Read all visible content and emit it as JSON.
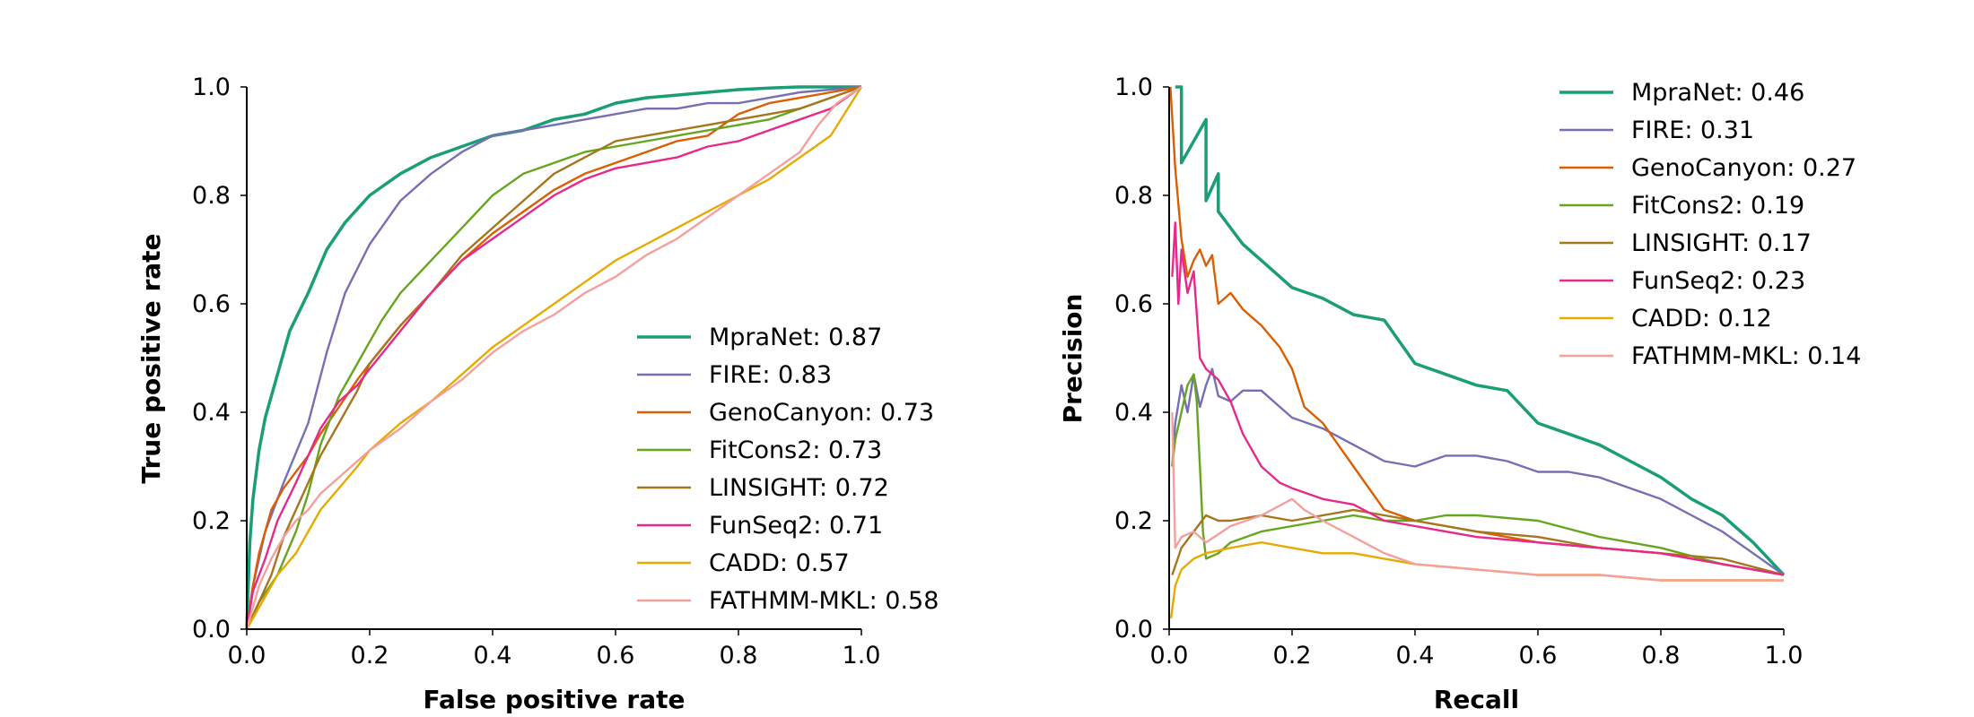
{
  "chart_data": [
    {
      "type": "line",
      "title": "",
      "xlabel": "False positive rate",
      "ylabel": "True positive rate",
      "xlim": [
        0,
        1
      ],
      "ylim": [
        0,
        1
      ],
      "xticks": [
        "0.0",
        "0.2",
        "0.4",
        "0.6",
        "0.8",
        "1.0"
      ],
      "yticks": [
        "0.0",
        "0.2",
        "0.4",
        "0.6",
        "0.8",
        "1.0"
      ],
      "grid": false,
      "legend_position": "lower-right",
      "series": [
        {
          "name": "MpraNet: 0.87",
          "color": "#1b9e77",
          "x": [
            0,
            0.005,
            0.01,
            0.02,
            0.03,
            0.05,
            0.07,
            0.1,
            0.13,
            0.16,
            0.2,
            0.25,
            0.3,
            0.35,
            0.4,
            0.45,
            0.5,
            0.55,
            0.6,
            0.65,
            0.7,
            0.75,
            0.8,
            0.85,
            0.9,
            0.95,
            1.0
          ],
          "y": [
            0,
            0.16,
            0.24,
            0.33,
            0.39,
            0.47,
            0.55,
            0.62,
            0.7,
            0.75,
            0.8,
            0.84,
            0.87,
            0.89,
            0.91,
            0.92,
            0.94,
            0.95,
            0.97,
            0.98,
            0.985,
            0.99,
            0.995,
            0.998,
            1.0,
            1.0,
            1.0
          ]
        },
        {
          "name": "FIRE: 0.83",
          "color": "#7570b3",
          "x": [
            0,
            0.01,
            0.03,
            0.06,
            0.1,
            0.13,
            0.16,
            0.2,
            0.25,
            0.3,
            0.35,
            0.4,
            0.45,
            0.5,
            0.55,
            0.6,
            0.65,
            0.7,
            0.75,
            0.8,
            0.85,
            0.9,
            0.95,
            1.0
          ],
          "y": [
            0,
            0.08,
            0.18,
            0.27,
            0.38,
            0.51,
            0.62,
            0.71,
            0.79,
            0.84,
            0.88,
            0.91,
            0.92,
            0.93,
            0.94,
            0.95,
            0.96,
            0.96,
            0.97,
            0.97,
            0.98,
            0.99,
            0.995,
            1.0
          ]
        },
        {
          "name": "GenoCanyon: 0.73",
          "color": "#d95f02",
          "x": [
            0,
            0.01,
            0.02,
            0.04,
            0.06,
            0.08,
            0.1,
            0.12,
            0.15,
            0.18,
            0.2,
            0.25,
            0.3,
            0.35,
            0.4,
            0.45,
            0.5,
            0.55,
            0.6,
            0.65,
            0.7,
            0.75,
            0.8,
            0.85,
            0.9,
            0.95,
            1.0
          ],
          "y": [
            0,
            0.08,
            0.14,
            0.22,
            0.26,
            0.29,
            0.32,
            0.36,
            0.41,
            0.46,
            0.49,
            0.56,
            0.62,
            0.68,
            0.73,
            0.77,
            0.81,
            0.84,
            0.86,
            0.88,
            0.9,
            0.91,
            0.95,
            0.97,
            0.98,
            0.99,
            1.0
          ]
        },
        {
          "name": "FitCons2: 0.73",
          "color": "#66a61e",
          "x": [
            0,
            0.02,
            0.05,
            0.08,
            0.1,
            0.12,
            0.15,
            0.18,
            0.2,
            0.22,
            0.25,
            0.3,
            0.35,
            0.4,
            0.45,
            0.5,
            0.55,
            0.6,
            0.65,
            0.7,
            0.75,
            0.8,
            0.85,
            0.9,
            0.95,
            1.0
          ],
          "y": [
            0,
            0.05,
            0.1,
            0.18,
            0.25,
            0.34,
            0.43,
            0.49,
            0.53,
            0.57,
            0.62,
            0.68,
            0.74,
            0.8,
            0.84,
            0.86,
            0.88,
            0.89,
            0.9,
            0.91,
            0.92,
            0.93,
            0.94,
            0.96,
            0.98,
            1.0
          ]
        },
        {
          "name": "LINSIGHT: 0.72",
          "color": "#a6761d",
          "x": [
            0,
            0.02,
            0.04,
            0.06,
            0.08,
            0.1,
            0.12,
            0.15,
            0.18,
            0.2,
            0.25,
            0.3,
            0.35,
            0.4,
            0.45,
            0.5,
            0.55,
            0.6,
            0.65,
            0.7,
            0.75,
            0.8,
            0.85,
            0.9,
            0.95,
            1.0
          ],
          "y": [
            0,
            0.05,
            0.1,
            0.17,
            0.22,
            0.27,
            0.32,
            0.38,
            0.44,
            0.49,
            0.56,
            0.62,
            0.69,
            0.74,
            0.79,
            0.84,
            0.87,
            0.9,
            0.91,
            0.92,
            0.93,
            0.94,
            0.95,
            0.96,
            0.98,
            1.0
          ]
        },
        {
          "name": "FunSeq2: 0.71",
          "color": "#e7298a",
          "x": [
            0,
            0.01,
            0.03,
            0.05,
            0.08,
            0.1,
            0.12,
            0.15,
            0.18,
            0.2,
            0.25,
            0.3,
            0.35,
            0.4,
            0.45,
            0.5,
            0.55,
            0.6,
            0.65,
            0.7,
            0.75,
            0.8,
            0.85,
            0.9,
            0.95,
            1.0
          ],
          "y": [
            0,
            0.07,
            0.13,
            0.2,
            0.27,
            0.32,
            0.37,
            0.42,
            0.45,
            0.48,
            0.55,
            0.62,
            0.68,
            0.72,
            0.76,
            0.8,
            0.83,
            0.85,
            0.86,
            0.87,
            0.89,
            0.9,
            0.92,
            0.94,
            0.96,
            1.0
          ]
        },
        {
          "name": "CADD: 0.57",
          "color": "#e6ab02",
          "x": [
            0,
            0.01,
            0.03,
            0.05,
            0.08,
            0.1,
            0.12,
            0.15,
            0.18,
            0.2,
            0.25,
            0.3,
            0.35,
            0.4,
            0.45,
            0.5,
            0.55,
            0.6,
            0.65,
            0.7,
            0.75,
            0.8,
            0.85,
            0.9,
            0.95,
            1.0
          ],
          "y": [
            0,
            0.02,
            0.06,
            0.1,
            0.14,
            0.18,
            0.22,
            0.26,
            0.3,
            0.33,
            0.38,
            0.42,
            0.47,
            0.52,
            0.56,
            0.6,
            0.64,
            0.68,
            0.71,
            0.74,
            0.77,
            0.8,
            0.83,
            0.87,
            0.91,
            1.0
          ]
        },
        {
          "name": "FATHMM-MKL: 0.58",
          "color": "#f4a09c",
          "x": [
            0,
            0.02,
            0.04,
            0.06,
            0.08,
            0.1,
            0.12,
            0.15,
            0.18,
            0.2,
            0.25,
            0.3,
            0.35,
            0.4,
            0.45,
            0.5,
            0.55,
            0.6,
            0.65,
            0.7,
            0.75,
            0.8,
            0.85,
            0.9,
            0.93,
            0.96,
            1.0
          ],
          "y": [
            0,
            0.08,
            0.13,
            0.17,
            0.2,
            0.22,
            0.25,
            0.28,
            0.31,
            0.33,
            0.37,
            0.42,
            0.46,
            0.51,
            0.55,
            0.58,
            0.62,
            0.65,
            0.69,
            0.72,
            0.76,
            0.8,
            0.84,
            0.88,
            0.93,
            0.97,
            1.0
          ]
        }
      ]
    },
    {
      "type": "line",
      "title": "",
      "xlabel": "Recall",
      "ylabel": "Precision",
      "xlim": [
        0,
        1
      ],
      "ylim": [
        0,
        1
      ],
      "xticks": [
        "0.0",
        "0.2",
        "0.4",
        "0.6",
        "0.8",
        "1.0"
      ],
      "yticks": [
        "0.0",
        "0.2",
        "0.4",
        "0.6",
        "0.8",
        "1.0"
      ],
      "grid": false,
      "legend_position": "upper-right",
      "series": [
        {
          "name": "MpraNet: 0.46",
          "color": "#1b9e77",
          "x": [
            0.01,
            0.02,
            0.02,
            0.04,
            0.06,
            0.06,
            0.08,
            0.08,
            0.1,
            0.12,
            0.15,
            0.2,
            0.25,
            0.3,
            0.35,
            0.4,
            0.45,
            0.5,
            0.55,
            0.6,
            0.65,
            0.7,
            0.75,
            0.8,
            0.85,
            0.9,
            0.95,
            1.0
          ],
          "y": [
            1.0,
            1.0,
            0.86,
            0.9,
            0.94,
            0.79,
            0.84,
            0.77,
            0.74,
            0.71,
            0.68,
            0.63,
            0.61,
            0.58,
            0.57,
            0.49,
            0.47,
            0.45,
            0.44,
            0.38,
            0.36,
            0.34,
            0.31,
            0.28,
            0.24,
            0.21,
            0.16,
            0.1
          ]
        },
        {
          "name": "FIRE: 0.31",
          "color": "#7570b3",
          "x": [
            0.005,
            0.01,
            0.02,
            0.03,
            0.04,
            0.05,
            0.06,
            0.07,
            0.08,
            0.1,
            0.12,
            0.15,
            0.18,
            0.2,
            0.25,
            0.3,
            0.35,
            0.4,
            0.45,
            0.5,
            0.55,
            0.6,
            0.65,
            0.7,
            0.75,
            0.8,
            0.85,
            0.9,
            0.95,
            1.0
          ],
          "y": [
            0.3,
            0.38,
            0.45,
            0.4,
            0.47,
            0.41,
            0.45,
            0.48,
            0.43,
            0.42,
            0.44,
            0.44,
            0.41,
            0.39,
            0.37,
            0.34,
            0.31,
            0.3,
            0.32,
            0.32,
            0.31,
            0.29,
            0.29,
            0.28,
            0.26,
            0.24,
            0.21,
            0.18,
            0.14,
            0.1
          ]
        },
        {
          "name": "GenoCanyon: 0.27",
          "color": "#d95f02",
          "x": [
            0.002,
            0.01,
            0.02,
            0.03,
            0.04,
            0.05,
            0.06,
            0.07,
            0.08,
            0.1,
            0.12,
            0.15,
            0.18,
            0.2,
            0.22,
            0.25,
            0.3,
            0.35,
            0.4,
            0.45,
            0.5,
            0.6,
            0.7,
            0.8,
            0.9,
            1.0
          ],
          "y": [
            1.0,
            0.85,
            0.72,
            0.65,
            0.68,
            0.7,
            0.67,
            0.69,
            0.6,
            0.62,
            0.59,
            0.56,
            0.52,
            0.48,
            0.41,
            0.38,
            0.3,
            0.22,
            0.2,
            0.19,
            0.18,
            0.16,
            0.15,
            0.14,
            0.12,
            0.1
          ]
        },
        {
          "name": "FitCons2: 0.19",
          "color": "#66a61e",
          "x": [
            0.005,
            0.01,
            0.02,
            0.03,
            0.04,
            0.045,
            0.05,
            0.055,
            0.06,
            0.08,
            0.1,
            0.15,
            0.2,
            0.25,
            0.3,
            0.35,
            0.4,
            0.45,
            0.5,
            0.6,
            0.7,
            0.8,
            0.9,
            1.0
          ],
          "y": [
            0.3,
            0.35,
            0.4,
            0.45,
            0.47,
            0.42,
            0.3,
            0.18,
            0.13,
            0.14,
            0.16,
            0.18,
            0.19,
            0.2,
            0.21,
            0.2,
            0.2,
            0.21,
            0.21,
            0.2,
            0.17,
            0.15,
            0.12,
            0.1
          ]
        },
        {
          "name": "LINSIGHT: 0.17",
          "color": "#a6761d",
          "x": [
            0.005,
            0.02,
            0.04,
            0.06,
            0.08,
            0.1,
            0.15,
            0.2,
            0.25,
            0.3,
            0.35,
            0.4,
            0.45,
            0.5,
            0.6,
            0.7,
            0.8,
            0.9,
            1.0
          ],
          "y": [
            0.1,
            0.15,
            0.18,
            0.21,
            0.2,
            0.2,
            0.21,
            0.2,
            0.21,
            0.22,
            0.21,
            0.2,
            0.19,
            0.18,
            0.17,
            0.15,
            0.14,
            0.13,
            0.1
          ]
        },
        {
          "name": "FunSeq2: 0.23",
          "color": "#e7298a",
          "x": [
            0.005,
            0.01,
            0.015,
            0.02,
            0.03,
            0.04,
            0.05,
            0.06,
            0.08,
            0.1,
            0.12,
            0.15,
            0.18,
            0.2,
            0.25,
            0.3,
            0.35,
            0.4,
            0.45,
            0.5,
            0.6,
            0.7,
            0.8,
            0.9,
            1.0
          ],
          "y": [
            0.65,
            0.75,
            0.6,
            0.7,
            0.62,
            0.66,
            0.5,
            0.48,
            0.46,
            0.42,
            0.36,
            0.3,
            0.27,
            0.26,
            0.24,
            0.23,
            0.2,
            0.19,
            0.18,
            0.17,
            0.16,
            0.15,
            0.14,
            0.12,
            0.1
          ]
        },
        {
          "name": "CADD: 0.12",
          "color": "#e6ab02",
          "x": [
            0.003,
            0.01,
            0.02,
            0.04,
            0.06,
            0.1,
            0.15,
            0.2,
            0.25,
            0.3,
            0.35,
            0.4,
            0.5,
            0.6,
            0.7,
            0.8,
            0.9,
            1.0
          ],
          "y": [
            0.02,
            0.08,
            0.11,
            0.13,
            0.14,
            0.15,
            0.16,
            0.15,
            0.14,
            0.14,
            0.13,
            0.12,
            0.11,
            0.1,
            0.1,
            0.09,
            0.09,
            0.09
          ]
        },
        {
          "name": "FATHMM-MKL: 0.14",
          "color": "#f4a09c",
          "x": [
            0.005,
            0.01,
            0.02,
            0.04,
            0.06,
            0.1,
            0.15,
            0.2,
            0.22,
            0.25,
            0.3,
            0.35,
            0.4,
            0.5,
            0.6,
            0.7,
            0.8,
            0.9,
            1.0
          ],
          "y": [
            0.4,
            0.15,
            0.17,
            0.18,
            0.16,
            0.19,
            0.21,
            0.24,
            0.22,
            0.2,
            0.17,
            0.14,
            0.12,
            0.11,
            0.1,
            0.1,
            0.09,
            0.09,
            0.09
          ]
        }
      ]
    }
  ]
}
